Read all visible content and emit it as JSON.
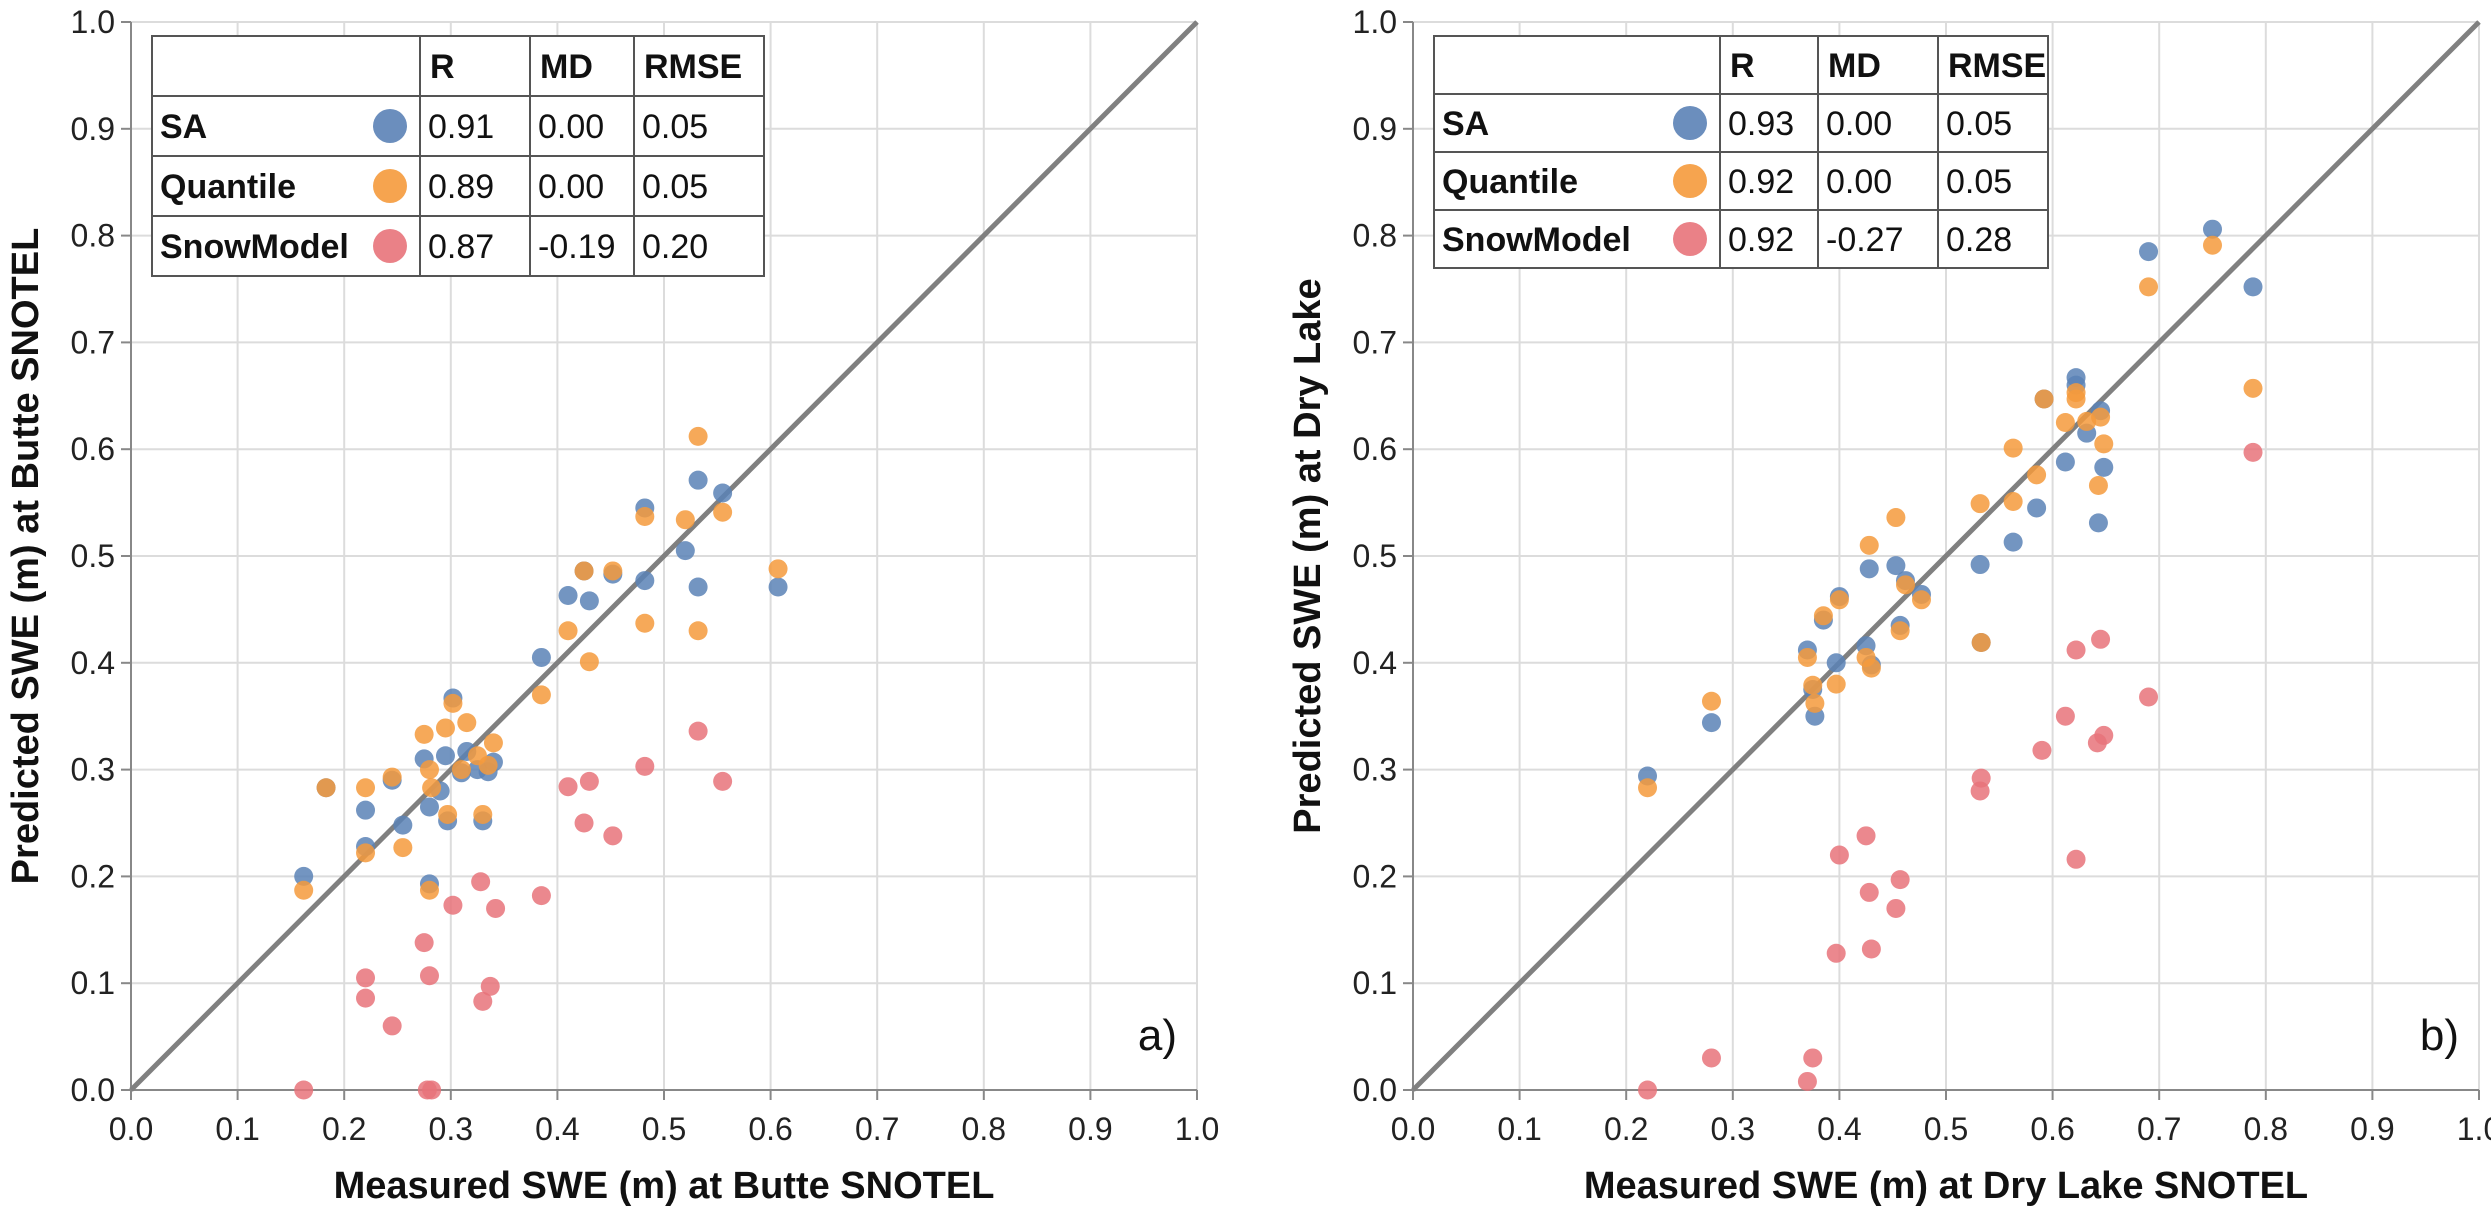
{
  "chart_data": [
    {
      "type": "scatter",
      "panel_label": "a)",
      "xlabel": "Measured SWE (m) at Butte SNOTEL",
      "ylabel": "Predicted SWE (m) at Butte SNOTEL",
      "xlim": [
        0,
        1.0
      ],
      "ylim": [
        0,
        1.0
      ],
      "ticks": [
        "0.0",
        "0.1",
        "0.2",
        "0.3",
        "0.4",
        "0.5",
        "0.6",
        "0.7",
        "0.8",
        "0.9",
        "1.0"
      ],
      "grid": true,
      "one_to_one_line": true,
      "legend_table": {
        "headers": [
          "R",
          "MD",
          "RMSE"
        ],
        "rows": [
          {
            "name": "SA",
            "R": "0.91",
            "MD": "0.00",
            "RMSE": "0.05"
          },
          {
            "name": "Quantile",
            "R": "0.89",
            "MD": "0.00",
            "RMSE": "0.05"
          },
          {
            "name": "SnowModel",
            "R": "0.87",
            "MD": "-0.19",
            "RMSE": "0.20"
          }
        ]
      },
      "series": [
        {
          "name": "SA",
          "color": "#5b82b6",
          "points": [
            [
              0.162,
              0.2
            ],
            [
              0.183,
              0.283
            ],
            [
              0.22,
              0.262
            ],
            [
              0.22,
              0.228
            ],
            [
              0.245,
              0.29
            ],
            [
              0.255,
              0.248
            ],
            [
              0.275,
              0.31
            ],
            [
              0.28,
              0.265
            ],
            [
              0.28,
              0.193
            ],
            [
              0.29,
              0.28
            ],
            [
              0.295,
              0.313
            ],
            [
              0.297,
              0.252
            ],
            [
              0.302,
              0.367
            ],
            [
              0.31,
              0.297
            ],
            [
              0.315,
              0.317
            ],
            [
              0.325,
              0.3
            ],
            [
              0.33,
              0.252
            ],
            [
              0.335,
              0.298
            ],
            [
              0.34,
              0.307
            ],
            [
              0.385,
              0.405
            ],
            [
              0.41,
              0.463
            ],
            [
              0.425,
              0.486
            ],
            [
              0.43,
              0.458
            ],
            [
              0.452,
              0.483
            ],
            [
              0.482,
              0.545
            ],
            [
              0.482,
              0.477
            ],
            [
              0.52,
              0.505
            ],
            [
              0.532,
              0.571
            ],
            [
              0.532,
              0.471
            ],
            [
              0.555,
              0.559
            ],
            [
              0.607,
              0.471
            ]
          ]
        },
        {
          "name": "Quantile",
          "color": "#f59a3c",
          "points": [
            [
              0.162,
              0.187
            ],
            [
              0.183,
              0.283
            ],
            [
              0.22,
              0.283
            ],
            [
              0.22,
              0.222
            ],
            [
              0.245,
              0.293
            ],
            [
              0.255,
              0.227
            ],
            [
              0.275,
              0.333
            ],
            [
              0.28,
              0.3
            ],
            [
              0.28,
              0.187
            ],
            [
              0.282,
              0.283
            ],
            [
              0.295,
              0.339
            ],
            [
              0.297,
              0.258
            ],
            [
              0.302,
              0.362
            ],
            [
              0.31,
              0.3
            ],
            [
              0.315,
              0.344
            ],
            [
              0.325,
              0.313
            ],
            [
              0.33,
              0.258
            ],
            [
              0.335,
              0.304
            ],
            [
              0.34,
              0.325
            ],
            [
              0.385,
              0.37
            ],
            [
              0.41,
              0.43
            ],
            [
              0.425,
              0.486
            ],
            [
              0.43,
              0.401
            ],
            [
              0.452,
              0.486
            ],
            [
              0.482,
              0.537
            ],
            [
              0.482,
              0.437
            ],
            [
              0.52,
              0.534
            ],
            [
              0.532,
              0.612
            ],
            [
              0.532,
              0.43
            ],
            [
              0.555,
              0.541
            ],
            [
              0.607,
              0.488
            ]
          ]
        },
        {
          "name": "SnowModel",
          "color": "#e8737a",
          "points": [
            [
              0.162,
              0.0
            ],
            [
              0.22,
              0.105
            ],
            [
              0.22,
              0.086
            ],
            [
              0.245,
              0.06
            ],
            [
              0.275,
              0.138
            ],
            [
              0.28,
              0.107
            ],
            [
              0.278,
              0.0
            ],
            [
              0.282,
              0.0
            ],
            [
              0.302,
              0.173
            ],
            [
              0.328,
              0.195
            ],
            [
              0.33,
              0.083
            ],
            [
              0.337,
              0.097
            ],
            [
              0.342,
              0.17
            ],
            [
              0.385,
              0.182
            ],
            [
              0.41,
              0.284
            ],
            [
              0.425,
              0.25
            ],
            [
              0.43,
              0.289
            ],
            [
              0.452,
              0.238
            ],
            [
              0.482,
              0.303
            ],
            [
              0.532,
              0.336
            ],
            [
              0.555,
              0.289
            ]
          ]
        }
      ]
    },
    {
      "type": "scatter",
      "panel_label": "b)",
      "xlabel": "Measured SWE (m) at Dry Lake SNOTEL",
      "ylabel": "Predicted SWE (m) at Dry Lake",
      "xlim": [
        0,
        1.0
      ],
      "ylim": [
        0,
        1.0
      ],
      "ticks": [
        "0.0",
        "0.1",
        "0.2",
        "0.3",
        "0.4",
        "0.5",
        "0.6",
        "0.7",
        "0.8",
        "0.9",
        "1.0"
      ],
      "grid": true,
      "one_to_one_line": true,
      "legend_table": {
        "headers": [
          "R",
          "MD",
          "RMSE"
        ],
        "rows": [
          {
            "name": "SA",
            "R": "0.93",
            "MD": "0.00",
            "RMSE": "0.05"
          },
          {
            "name": "Quantile",
            "R": "0.92",
            "MD": "0.00",
            "RMSE": "0.05"
          },
          {
            "name": "SnowModel",
            "R": "0.92",
            "MD": "-0.27",
            "RMSE": "0.28"
          }
        ]
      },
      "series": [
        {
          "name": "SA",
          "color": "#5b82b6",
          "points": [
            [
              0.22,
              0.294
            ],
            [
              0.28,
              0.344
            ],
            [
              0.37,
              0.412
            ],
            [
              0.375,
              0.375
            ],
            [
              0.377,
              0.35
            ],
            [
              0.385,
              0.44
            ],
            [
              0.397,
              0.4
            ],
            [
              0.4,
              0.462
            ],
            [
              0.425,
              0.416
            ],
            [
              0.428,
              0.488
            ],
            [
              0.43,
              0.398
            ],
            [
              0.453,
              0.491
            ],
            [
              0.457,
              0.435
            ],
            [
              0.462,
              0.477
            ],
            [
              0.477,
              0.464
            ],
            [
              0.532,
              0.492
            ],
            [
              0.533,
              0.419
            ],
            [
              0.563,
              0.513
            ],
            [
              0.585,
              0.545
            ],
            [
              0.592,
              0.647
            ],
            [
              0.612,
              0.588
            ],
            [
              0.622,
              0.667
            ],
            [
              0.622,
              0.66
            ],
            [
              0.632,
              0.615
            ],
            [
              0.643,
              0.531
            ],
            [
              0.645,
              0.636
            ],
            [
              0.648,
              0.583
            ],
            [
              0.69,
              0.785
            ],
            [
              0.75,
              0.806
            ],
            [
              0.788,
              0.752
            ]
          ]
        },
        {
          "name": "Quantile",
          "color": "#f59a3c",
          "points": [
            [
              0.22,
              0.283
            ],
            [
              0.28,
              0.364
            ],
            [
              0.37,
              0.405
            ],
            [
              0.375,
              0.379
            ],
            [
              0.377,
              0.362
            ],
            [
              0.385,
              0.444
            ],
            [
              0.397,
              0.38
            ],
            [
              0.4,
              0.459
            ],
            [
              0.425,
              0.405
            ],
            [
              0.428,
              0.51
            ],
            [
              0.43,
              0.395
            ],
            [
              0.453,
              0.536
            ],
            [
              0.457,
              0.43
            ],
            [
              0.462,
              0.473
            ],
            [
              0.477,
              0.459
            ],
            [
              0.532,
              0.549
            ],
            [
              0.533,
              0.419
            ],
            [
              0.563,
              0.601
            ],
            [
              0.563,
              0.551
            ],
            [
              0.585,
              0.576
            ],
            [
              0.592,
              0.647
            ],
            [
              0.612,
              0.625
            ],
            [
              0.622,
              0.653
            ],
            [
              0.622,
              0.647
            ],
            [
              0.632,
              0.626
            ],
            [
              0.643,
              0.566
            ],
            [
              0.645,
              0.63
            ],
            [
              0.648,
              0.605
            ],
            [
              0.69,
              0.752
            ],
            [
              0.75,
              0.791
            ],
            [
              0.788,
              0.657
            ]
          ]
        },
        {
          "name": "SnowModel",
          "color": "#e8737a",
          "points": [
            [
              0.22,
              0.0
            ],
            [
              0.28,
              0.03
            ],
            [
              0.37,
              0.008
            ],
            [
              0.375,
              0.03
            ],
            [
              0.397,
              0.128
            ],
            [
              0.4,
              0.22
            ],
            [
              0.425,
              0.238
            ],
            [
              0.428,
              0.185
            ],
            [
              0.43,
              0.132
            ],
            [
              0.453,
              0.17
            ],
            [
              0.457,
              0.197
            ],
            [
              0.532,
              0.28
            ],
            [
              0.533,
              0.292
            ],
            [
              0.59,
              0.318
            ],
            [
              0.612,
              0.35
            ],
            [
              0.622,
              0.412
            ],
            [
              0.622,
              0.216
            ],
            [
              0.642,
              0.325
            ],
            [
              0.645,
              0.422
            ],
            [
              0.648,
              0.332
            ],
            [
              0.69,
              0.368
            ],
            [
              0.788,
              0.597
            ]
          ]
        }
      ]
    }
  ]
}
